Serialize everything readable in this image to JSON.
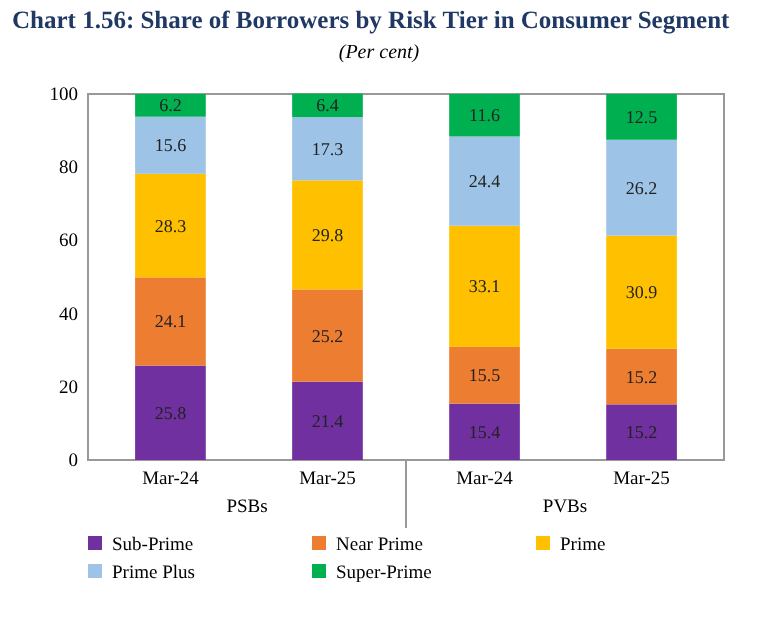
{
  "chart_data": {
    "type": "bar",
    "stacked": true,
    "title": "Chart 1.56: Share of Borrowers by Risk Tier in Consumer Segment",
    "subtitle": "(Per cent)",
    "categories": [
      "Mar-24",
      "Mar-25",
      "Mar-24",
      "Mar-25"
    ],
    "annotations": [
      "PSBs",
      "PVBs"
    ],
    "series": [
      {
        "name": "Sub-Prime",
        "color": "#7030a0",
        "values": [
          25.8,
          21.4,
          15.4,
          15.2
        ]
      },
      {
        "name": "Near Prime",
        "color": "#ed7d31",
        "values": [
          24.1,
          25.2,
          15.5,
          15.2
        ]
      },
      {
        "name": "Prime",
        "color": "#ffc000",
        "values": [
          28.3,
          29.8,
          33.1,
          30.9
        ]
      },
      {
        "name": "Prime Plus",
        "color": "#9dc3e6",
        "values": [
          15.6,
          17.3,
          24.4,
          26.2
        ]
      },
      {
        "name": "Super-Prime",
        "color": "#00b050",
        "values": [
          6.2,
          6.4,
          11.6,
          12.5
        ]
      }
    ],
    "ylim": [
      0,
      100
    ],
    "yticks": [
      0,
      20,
      40,
      60,
      80,
      100
    ],
    "data_labels": true,
    "legend": "bottom",
    "grid": false
  }
}
